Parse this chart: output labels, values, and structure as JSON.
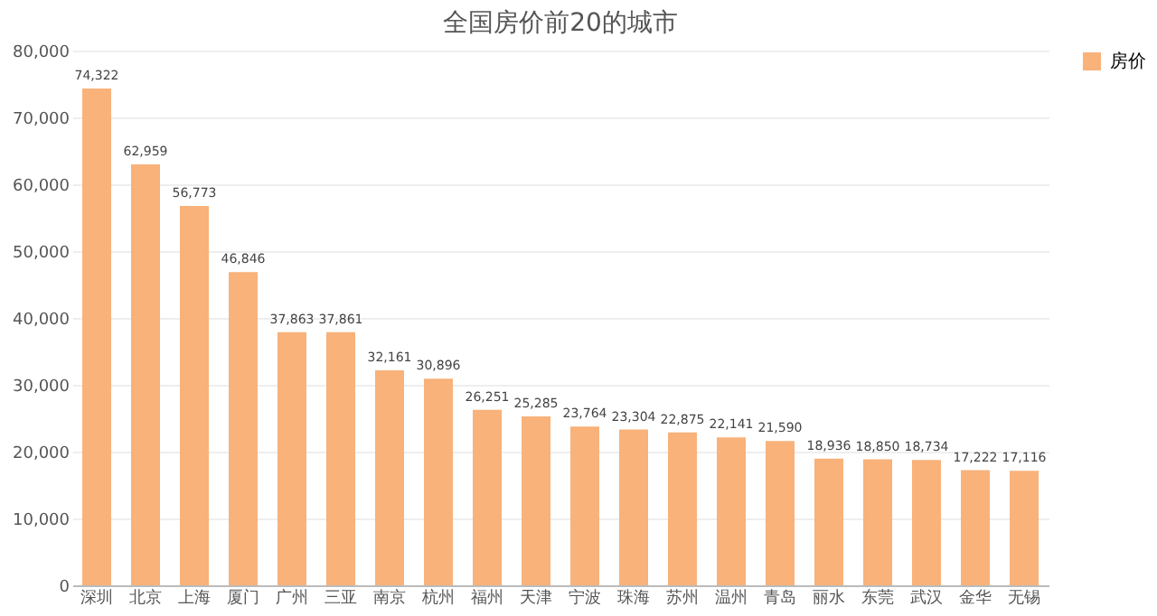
{
  "chart_data": {
    "type": "bar",
    "title": "全国房价前20的城市",
    "categories": [
      "深圳",
      "北京",
      "上海",
      "厦门",
      "广州",
      "三亚",
      "南京",
      "杭州",
      "福州",
      "天津",
      "宁波",
      "珠海",
      "苏州",
      "温州",
      "青岛",
      "丽水",
      "东莞",
      "武汉",
      "金华",
      "无锡"
    ],
    "series": [
      {
        "name": "房价",
        "color": "#f8b27a",
        "values": [
          74322,
          62959,
          56773,
          46846,
          37863,
          37861,
          32161,
          30896,
          26251,
          25285,
          23764,
          23304,
          22875,
          22141,
          21590,
          18936,
          18850,
          18734,
          17222,
          17116
        ],
        "value_labels": [
          "74,322",
          "62,959",
          "56,773",
          "46,846",
          "37,863",
          "37,861",
          "32,161",
          "30,896",
          "26,251",
          "25,285",
          "23,764",
          "23,304",
          "22,875",
          "22,141",
          "21,590",
          "18,936",
          "18,850",
          "18,734",
          "17,222",
          "17,116"
        ]
      }
    ],
    "ylim": [
      0,
      80000
    ],
    "yticks": [
      {
        "value": 0,
        "label": "0"
      },
      {
        "value": 10000,
        "label": "10,000"
      },
      {
        "value": 20000,
        "label": "20,000"
      },
      {
        "value": 30000,
        "label": "30,000"
      },
      {
        "value": 40000,
        "label": "40,000"
      },
      {
        "value": 50000,
        "label": "50,000"
      },
      {
        "value": 60000,
        "label": "60,000"
      },
      {
        "value": 70000,
        "label": "70,000"
      },
      {
        "value": 80000,
        "label": "80,000"
      }
    ],
    "grid": "y",
    "legend": "right"
  }
}
